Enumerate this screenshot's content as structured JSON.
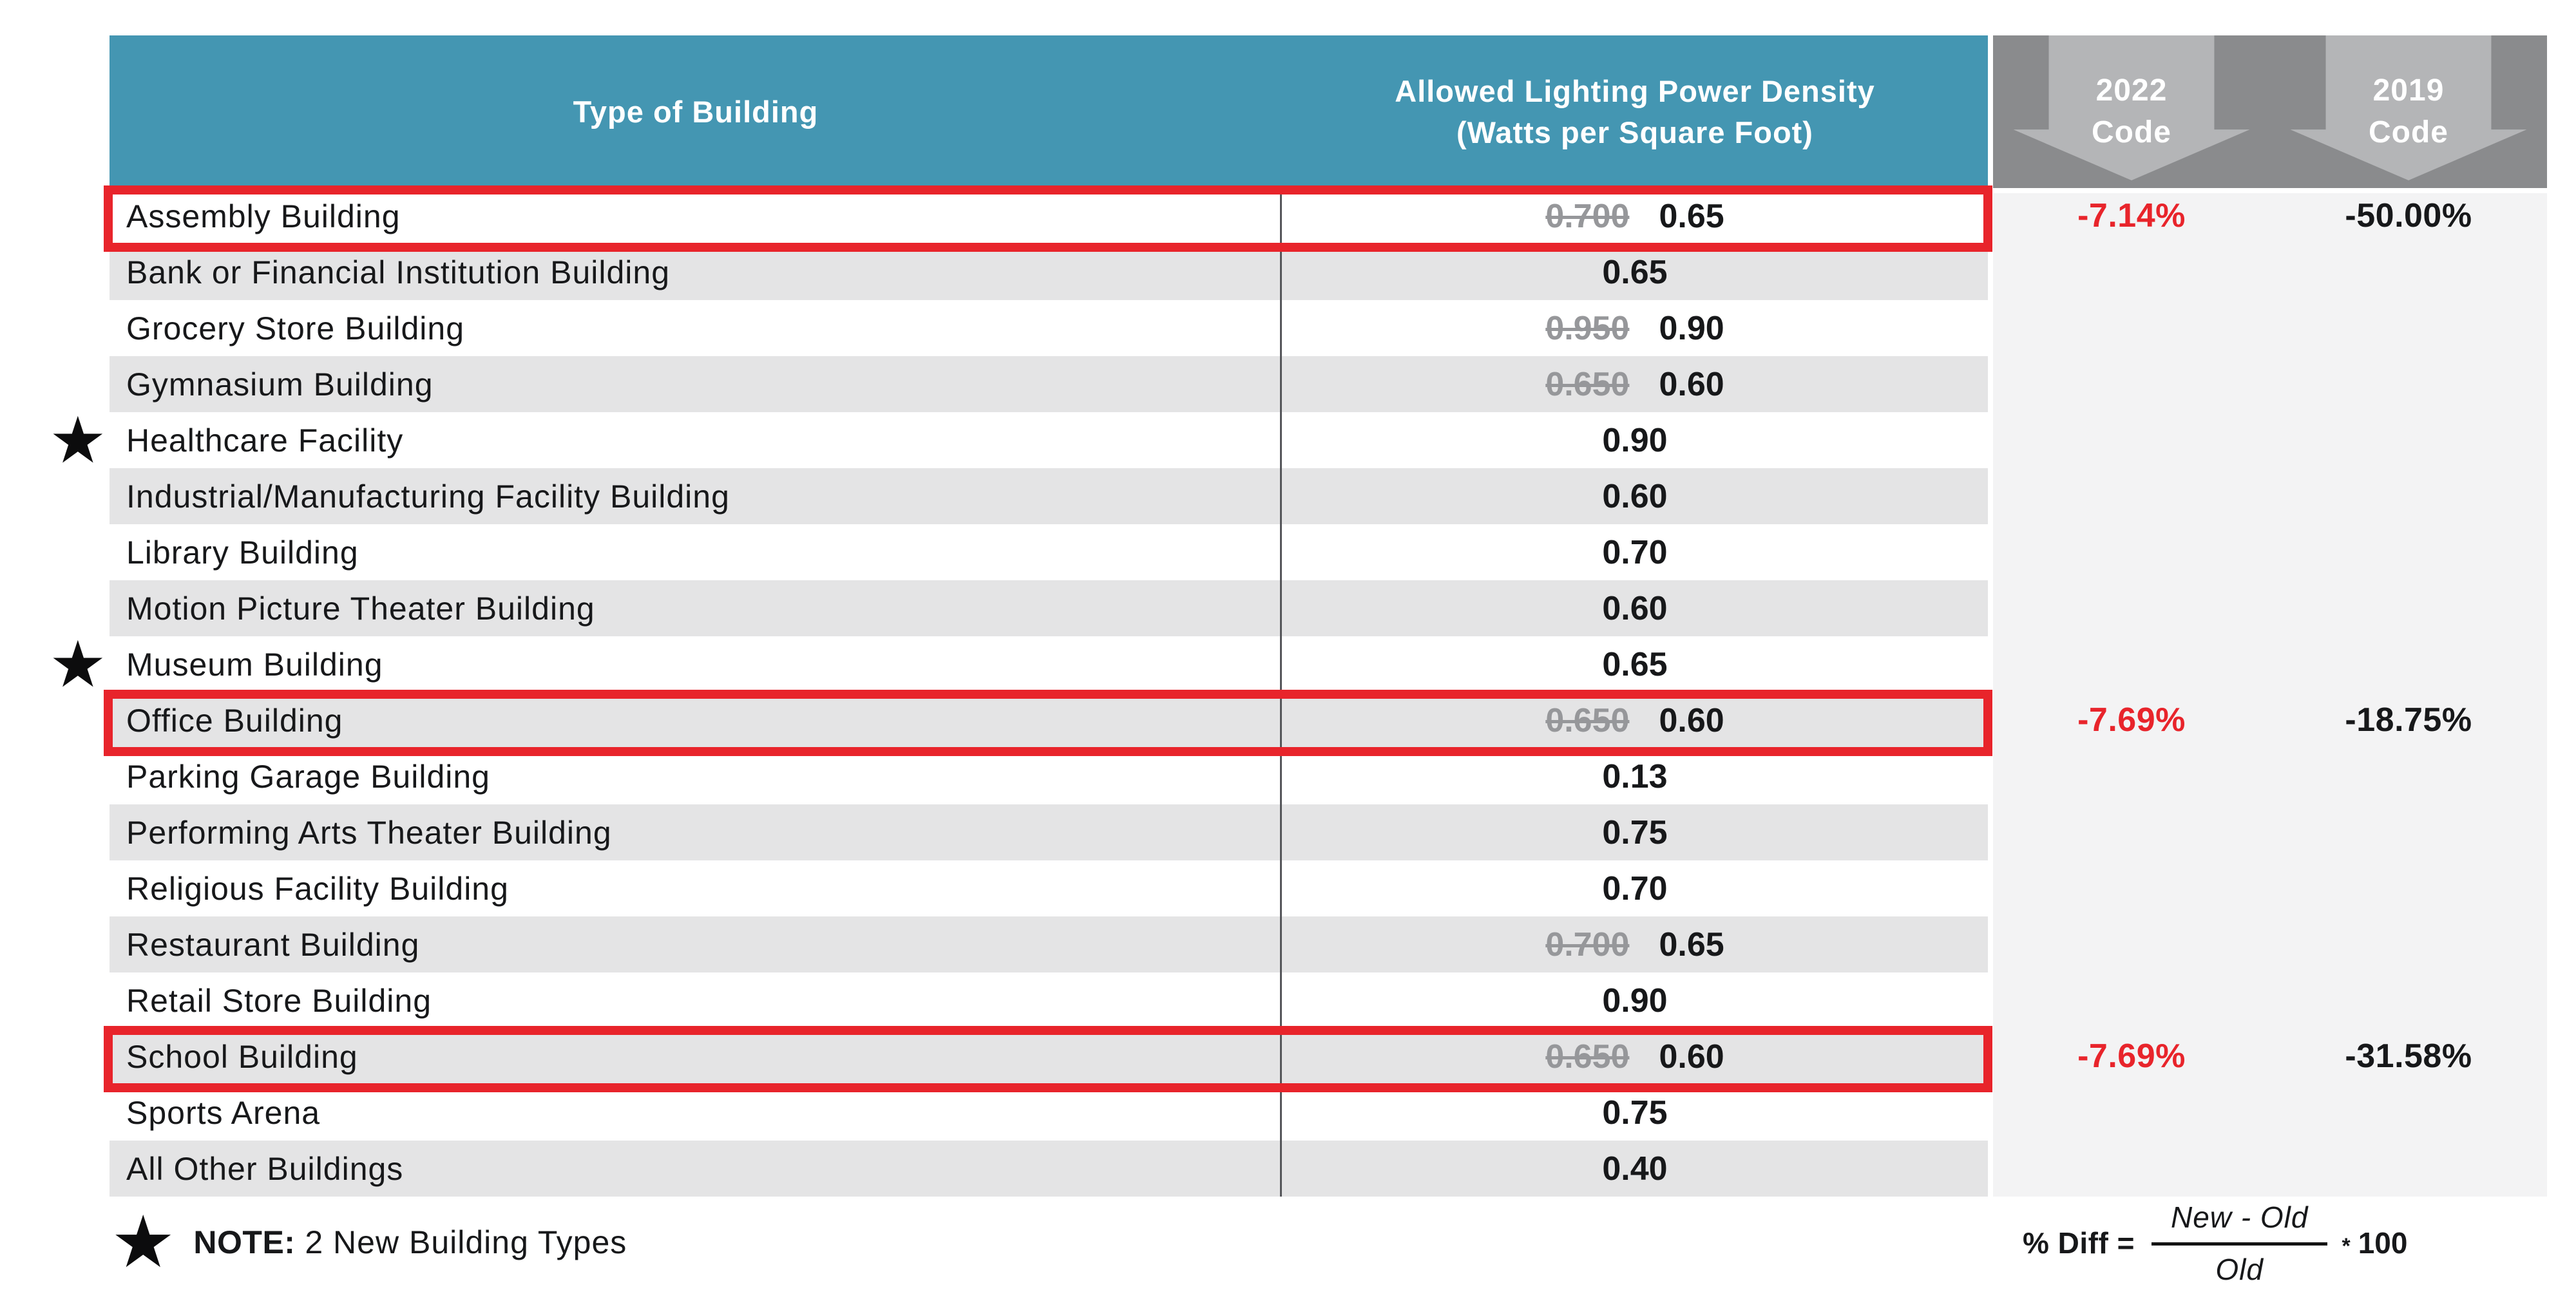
{
  "table": {
    "header": {
      "building_col": "Type of Building",
      "lpd_col_line1": "Allowed Lighting Power Density",
      "lpd_col_line2": "(Watts per Square Foot)"
    },
    "arrow_columns": [
      {
        "year": "2022",
        "word": "Code"
      },
      {
        "year": "2019",
        "word": "Code"
      }
    ]
  },
  "chart_data": {
    "type": "table",
    "columns": [
      "Type of Building",
      "Allowed Lighting Power Density (Watts per Square Foot)",
      "2022 Code % Diff",
      "2019 Code % Diff"
    ],
    "rows": [
      {
        "name": "Assembly Building",
        "old_value": "0.700",
        "new_value": "0.65",
        "starred": false,
        "highlighted": true,
        "pct_2022": "-7.14%",
        "pct_2019": "-50.00%"
      },
      {
        "name": "Bank or Financial Institution Building",
        "old_value": "",
        "new_value": "0.65",
        "starred": false,
        "highlighted": false,
        "pct_2022": "",
        "pct_2019": ""
      },
      {
        "name": "Grocery Store Building",
        "old_value": "0.950",
        "new_value": "0.90",
        "starred": false,
        "highlighted": false,
        "pct_2022": "",
        "pct_2019": ""
      },
      {
        "name": "Gymnasium Building",
        "old_value": "0.650",
        "new_value": "0.60",
        "starred": false,
        "highlighted": false,
        "pct_2022": "",
        "pct_2019": ""
      },
      {
        "name": "Healthcare Facility",
        "old_value": "",
        "new_value": "0.90",
        "starred": true,
        "highlighted": false,
        "pct_2022": "",
        "pct_2019": ""
      },
      {
        "name": "Industrial/Manufacturing Facility Building",
        "old_value": "",
        "new_value": "0.60",
        "starred": false,
        "highlighted": false,
        "pct_2022": "",
        "pct_2019": ""
      },
      {
        "name": "Library Building",
        "old_value": "",
        "new_value": "0.70",
        "starred": false,
        "highlighted": false,
        "pct_2022": "",
        "pct_2019": ""
      },
      {
        "name": "Motion Picture Theater Building",
        "old_value": "",
        "new_value": "0.60",
        "starred": false,
        "highlighted": false,
        "pct_2022": "",
        "pct_2019": ""
      },
      {
        "name": "Museum Building",
        "old_value": "",
        "new_value": "0.65",
        "starred": true,
        "highlighted": false,
        "pct_2022": "",
        "pct_2019": ""
      },
      {
        "name": "Office Building",
        "old_value": "0.650",
        "new_value": "0.60",
        "starred": false,
        "highlighted": true,
        "pct_2022": "-7.69%",
        "pct_2019": "-18.75%"
      },
      {
        "name": "Parking Garage Building",
        "old_value": "",
        "new_value": "0.13",
        "starred": false,
        "highlighted": false,
        "pct_2022": "",
        "pct_2019": ""
      },
      {
        "name": "Performing Arts Theater Building",
        "old_value": "",
        "new_value": "0.75",
        "starred": false,
        "highlighted": false,
        "pct_2022": "",
        "pct_2019": ""
      },
      {
        "name": "Religious Facility Building",
        "old_value": "",
        "new_value": "0.70",
        "starred": false,
        "highlighted": false,
        "pct_2022": "",
        "pct_2019": ""
      },
      {
        "name": "Restaurant Building",
        "old_value": "0.700",
        "new_value": "0.65",
        "starred": false,
        "highlighted": false,
        "pct_2022": "",
        "pct_2019": ""
      },
      {
        "name": "Retail Store Building",
        "old_value": "",
        "new_value": "0.90",
        "starred": false,
        "highlighted": false,
        "pct_2022": "",
        "pct_2019": ""
      },
      {
        "name": "School Building",
        "old_value": "0.650",
        "new_value": "0.60",
        "starred": false,
        "highlighted": true,
        "pct_2022": "-7.69%",
        "pct_2019": "-31.58%"
      },
      {
        "name": "Sports Arena",
        "old_value": "",
        "new_value": "0.75",
        "starred": false,
        "highlighted": false,
        "pct_2022": "",
        "pct_2019": ""
      },
      {
        "name": "All Other Buildings",
        "old_value": "",
        "new_value": "0.40",
        "starred": false,
        "highlighted": false,
        "pct_2022": "",
        "pct_2019": ""
      }
    ]
  },
  "note": {
    "star_icon": "★",
    "label": "NOTE:",
    "text": "2 New Building Types"
  },
  "formula": {
    "lhs": "% Diff =",
    "numerator": "New - Old",
    "denominator": "Old",
    "operator": "*",
    "factor": "100"
  },
  "colors": {
    "teal": "#4496b2",
    "header_gray": "#8a8b8d",
    "arrow_gray": "#b4b5b7",
    "row_alt": "#e4e4e5",
    "panel_bg": "#f3f3f4",
    "highlight_red": "#e8242b"
  }
}
